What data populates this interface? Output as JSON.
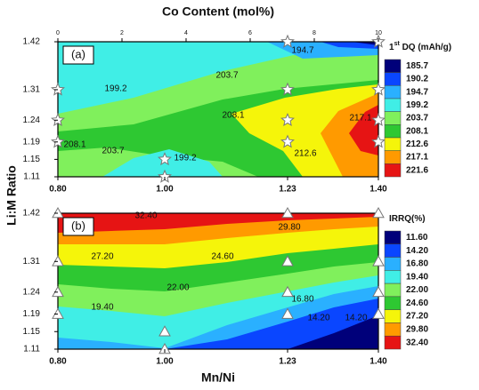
{
  "chart_data": [
    {
      "type": "contour",
      "panel_label": "(a)",
      "x2label": "Co Content (mol%)",
      "ylabel": "Li:M Ratio",
      "xlim": [
        0.8,
        1.4
      ],
      "xticks": [
        {
          "value": 0.8,
          "label": "0.80"
        },
        {
          "value": 1.0,
          "label": "1.00"
        },
        1.23,
        {
          "value": 1.4,
          "label": "1.40"
        }
      ],
      "x2lim": [
        0,
        10
      ],
      "x2ticks": [
        0,
        2,
        4,
        6,
        8,
        10
      ],
      "ylim": [
        1.11,
        1.42
      ],
      "yticks": [
        1.42,
        1.31,
        1.24,
        1.19,
        1.15,
        1.11
      ],
      "colorbar_title": [
        "1",
        "st",
        " DQ (mAh/g)"
      ],
      "levels": [
        185.7,
        190.2,
        194.7,
        199.2,
        203.7,
        208.1,
        212.6,
        217.1,
        221.6
      ],
      "colors": [
        "#00007a",
        "#0a46ff",
        "#2ab0ff",
        "#40eee6",
        "#80f05c",
        "#2ec832",
        "#f5f50a",
        "#ff9a00",
        "#e61414"
      ],
      "contour_labels": [
        194.7,
        199.2,
        203.7,
        208.1,
        217.1,
        208.1,
        203.7,
        199.2,
        212.6
      ],
      "marker": "star",
      "points": {
        "x": [
          0.8,
          0.8,
          0.8,
          1.0,
          1.0,
          1.23,
          1.23,
          1.23,
          1.23,
          1.4,
          1.4,
          1.4,
          1.4
        ],
        "y": [
          1.31,
          1.24,
          1.19,
          1.15,
          1.11,
          1.42,
          1.31,
          1.24,
          1.19,
          1.42,
          1.31,
          1.24,
          1.19
        ]
      }
    },
    {
      "type": "contour",
      "panel_label": "(b)",
      "xlabel": "Mn/Ni",
      "xlim": [
        0.8,
        1.4
      ],
      "xticks": [
        {
          "value": 0.8,
          "label": "0.80"
        },
        {
          "value": 1.0,
          "label": "1.00"
        },
        1.23,
        {
          "value": 1.4,
          "label": "1.40"
        }
      ],
      "ylim": [
        1.11,
        1.42
      ],
      "yticks": [
        1.42,
        1.31,
        1.24,
        1.19,
        1.15,
        1.11
      ],
      "colorbar_title": [
        "IRRQ(%)"
      ],
      "levels": [
        {
          "value": 11.6,
          "label": "11.60"
        },
        {
          "value": 14.2,
          "label": "14.20"
        },
        {
          "value": 16.8,
          "label": "16.80"
        },
        {
          "value": 19.4,
          "label": "19.40"
        },
        {
          "value": 22.0,
          "label": "22.00"
        },
        {
          "value": 24.6,
          "label": "24.60"
        },
        {
          "value": 27.2,
          "label": "27.20"
        },
        {
          "value": 29.8,
          "label": "29.80"
        },
        {
          "value": 32.4,
          "label": "32.40"
        }
      ],
      "colors": [
        "#00007a",
        "#0a46ff",
        "#2ab0ff",
        "#40eee6",
        "#80f05c",
        "#2ec832",
        "#f5f50a",
        "#ff9a00",
        "#e61414"
      ],
      "contour_labels": [
        {
          "value": 32.4,
          "label": "32.40"
        },
        {
          "value": 29.8,
          "label": "29.80"
        },
        {
          "value": 27.2,
          "label": "27.20"
        },
        {
          "value": 24.6,
          "label": "24.60"
        },
        {
          "value": 22.0,
          "label": "22.00"
        },
        {
          "value": 19.4,
          "label": "19.40"
        },
        {
          "value": 16.8,
          "label": "16.80"
        },
        {
          "value": 14.2,
          "label": "14.20"
        },
        {
          "value": 14.2,
          "label": "14.20"
        }
      ],
      "marker": "triangle",
      "points": {
        "x": [
          0.8,
          0.8,
          0.8,
          0.8,
          1.0,
          1.0,
          1.23,
          1.23,
          1.23,
          1.23,
          1.4,
          1.4,
          1.4,
          1.4
        ],
        "y": [
          1.42,
          1.31,
          1.24,
          1.19,
          1.15,
          1.11,
          1.42,
          1.31,
          1.24,
          1.19,
          1.42,
          1.31,
          1.24,
          1.19
        ]
      }
    }
  ]
}
